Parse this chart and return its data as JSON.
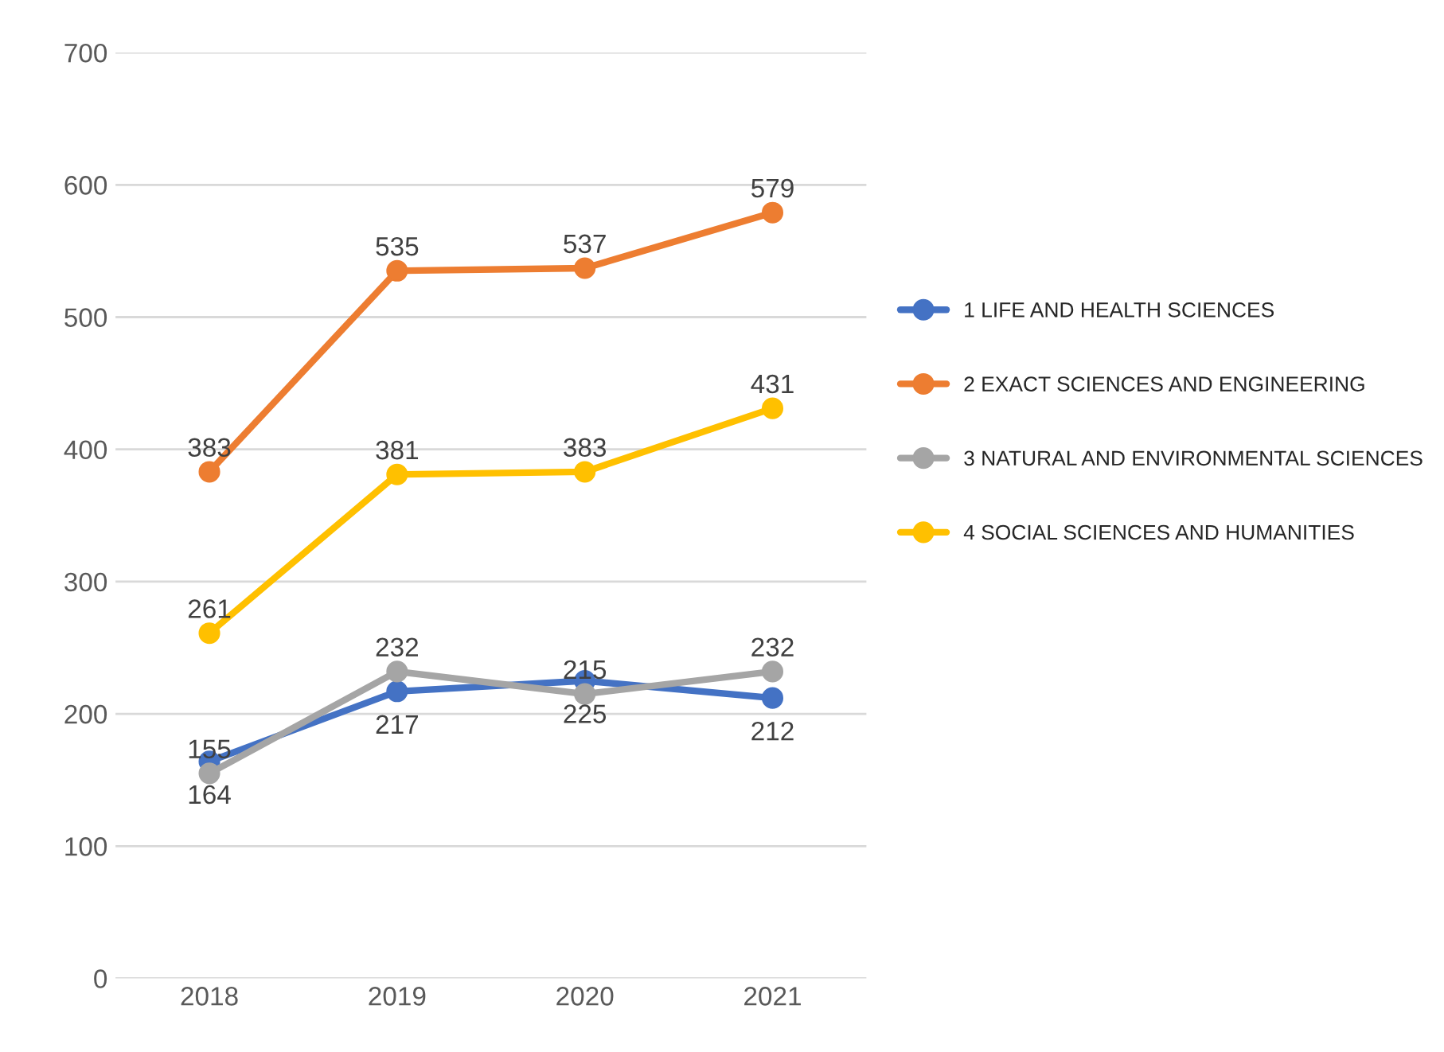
{
  "chart_data": {
    "type": "line",
    "categories": [
      "2018",
      "2019",
      "2020",
      "2021"
    ],
    "series": [
      {
        "name": "1 LIFE AND HEALTH SCIENCES",
        "color": "#4472c4",
        "values": [
          164,
          217,
          225,
          212
        ]
      },
      {
        "name": "2 EXACT SCIENCES AND ENGINEERING",
        "color": "#ed7d31",
        "values": [
          383,
          535,
          537,
          579
        ]
      },
      {
        "name": "3 NATURAL AND ENVIRONMENTAL SCIENCES",
        "color": "#a5a5a5",
        "values": [
          155,
          232,
          215,
          232
        ]
      },
      {
        "name": "4 SOCIAL SCIENCES AND HUMANITIES",
        "color": "#ffc000",
        "values": [
          261,
          381,
          383,
          431
        ]
      }
    ],
    "ylim": [
      0,
      700
    ],
    "yticks": [
      0,
      100,
      200,
      300,
      400,
      500,
      600,
      700
    ],
    "grid": "y",
    "legend": "right",
    "marker": "circle",
    "line_style": "solid",
    "data_labels": true
  }
}
